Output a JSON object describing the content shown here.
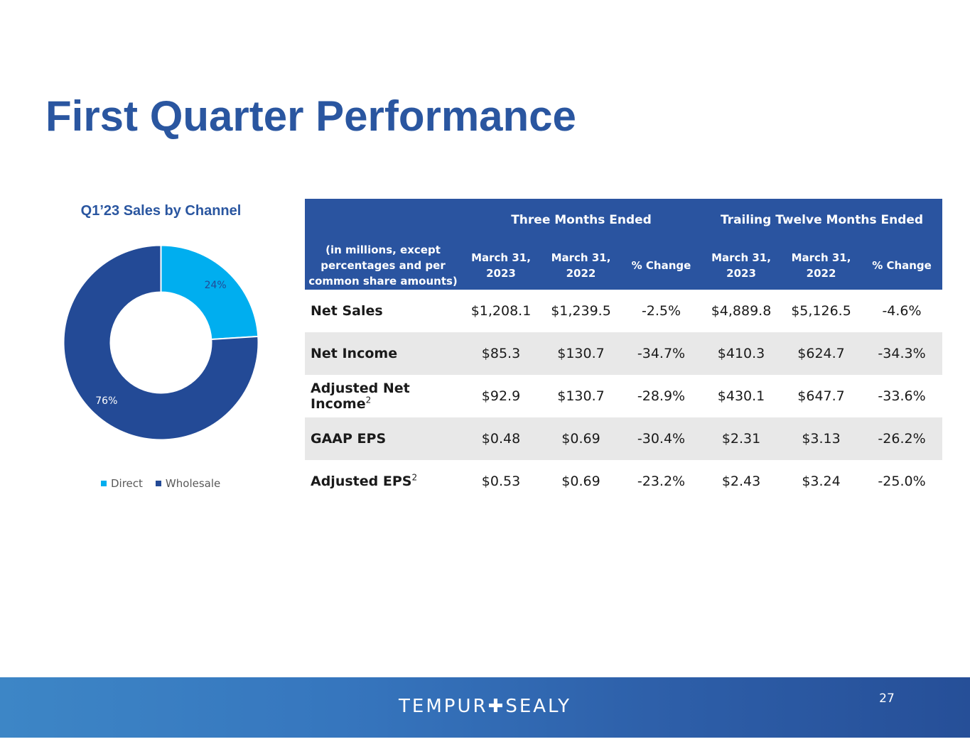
{
  "title": "First Quarter Performance",
  "chart_data": {
    "type": "pie",
    "title": "Q1’23 Sales by Channel",
    "categories": [
      "Direct",
      "Wholesale"
    ],
    "values": [
      24,
      76
    ],
    "labels": [
      "24%",
      "76%"
    ],
    "colors": [
      "#00aeef",
      "#234a96"
    ],
    "legend": "bottom"
  },
  "table": {
    "group_headers": [
      "Three Months Ended",
      "Trailing Twelve Months Ended"
    ],
    "columns": [
      "(in millions, except percentages and per common share amounts)",
      "March 31, 2023",
      "March 31, 2022",
      "% Change",
      "March 31, 2023",
      "March 31, 2022",
      "% Change"
    ],
    "rows": [
      {
        "label": "Net Sales",
        "sup": "",
        "values": [
          "$1,208.1",
          "$1,239.5",
          "-2.5%",
          "$4,889.8",
          "$5,126.5",
          "-4.6%"
        ]
      },
      {
        "label": "Net Income",
        "sup": "",
        "values": [
          "$85.3",
          "$130.7",
          "-34.7%",
          "$410.3",
          "$624.7",
          "-34.3%"
        ]
      },
      {
        "label": "Adjusted Net Income",
        "sup": "2",
        "values": [
          "$92.9",
          "$130.7",
          "-28.9%",
          "$430.1",
          "$647.7",
          "-33.6%"
        ]
      },
      {
        "label": "GAAP EPS",
        "sup": "",
        "values": [
          "$0.48",
          "$0.69",
          "-30.4%",
          "$2.31",
          "$3.13",
          "-26.2%"
        ]
      },
      {
        "label": "Adjusted EPS",
        "sup": "2",
        "values": [
          "$0.53",
          "$0.69",
          "-23.2%",
          "$2.43",
          "$3.24",
          "-25.0%"
        ]
      }
    ]
  },
  "footer": {
    "brand": "TEMPUR✚SEALY",
    "page_number": "27"
  }
}
